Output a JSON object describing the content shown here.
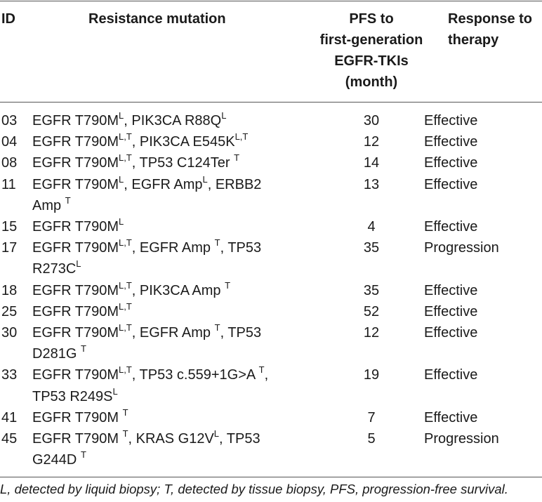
{
  "table": {
    "headers": {
      "id": "ID",
      "mutation": "Resistance mutation",
      "pfs": [
        "PFS to",
        "first-generation",
        "EGFR-TKIs",
        "(month)"
      ],
      "response": [
        "Response to",
        "therapy"
      ]
    },
    "rows": [
      {
        "id": "03",
        "mutation": [
          [
            [
              "EGFR T790M",
              "L"
            ],
            [
              ", PIK3CA R88Q",
              "L"
            ]
          ]
        ],
        "pfs": "30",
        "response": "Effective"
      },
      {
        "id": "04",
        "mutation": [
          [
            [
              "EGFR T790M",
              "L,T"
            ],
            [
              ", PIK3CA E545K",
              "L,T"
            ]
          ]
        ],
        "pfs": "12",
        "response": "Effective"
      },
      {
        "id": "08",
        "mutation": [
          [
            [
              "EGFR T790M",
              "L,T"
            ],
            [
              ", TP53 C124Ter ",
              "T"
            ]
          ]
        ],
        "pfs": "14",
        "response": "Effective"
      },
      {
        "id": "11",
        "mutation": [
          [
            [
              "EGFR T790M",
              "L"
            ],
            [
              ", EGFR Amp",
              "L"
            ],
            [
              ", ERBB2",
              ""
            ]
          ],
          [
            [
              "Amp ",
              "T"
            ]
          ]
        ],
        "pfs": "13",
        "response": "Effective"
      },
      {
        "id": "15",
        "mutation": [
          [
            [
              "EGFR T790M",
              "L"
            ]
          ]
        ],
        "pfs": "4",
        "response": "Effective"
      },
      {
        "id": "17",
        "mutation": [
          [
            [
              "EGFR T790M",
              "L,T"
            ],
            [
              ", EGFR Amp ",
              "T"
            ],
            [
              ", TP53",
              ""
            ]
          ],
          [
            [
              "R273C",
              "L"
            ]
          ]
        ],
        "pfs": "35",
        "response": "Progression"
      },
      {
        "id": "18",
        "mutation": [
          [
            [
              "EGFR T790M",
              "L,T"
            ],
            [
              ", PIK3CA Amp ",
              "T"
            ]
          ]
        ],
        "pfs": "35",
        "response": "Effective"
      },
      {
        "id": "25",
        "mutation": [
          [
            [
              "EGFR T790M",
              "L,T"
            ]
          ]
        ],
        "pfs": "52",
        "response": "Effective"
      },
      {
        "id": "30",
        "mutation": [
          [
            [
              "EGFR T790M",
              "L,T"
            ],
            [
              ", EGFR Amp ",
              "T"
            ],
            [
              ", TP53",
              ""
            ]
          ],
          [
            [
              "D281G ",
              "T"
            ]
          ]
        ],
        "pfs": "12",
        "response": "Effective"
      },
      {
        "id": "33",
        "mutation": [
          [
            [
              "EGFR T790M",
              "L,T"
            ],
            [
              ", TP53 c.559+1G>A ",
              "T"
            ],
            [
              ",",
              ""
            ]
          ],
          [
            [
              "TP53 R249S",
              "L"
            ]
          ]
        ],
        "pfs": "19",
        "response": "Effective"
      },
      {
        "id": "41",
        "mutation": [
          [
            [
              "EGFR T790M ",
              "T"
            ]
          ]
        ],
        "pfs": "7",
        "response": "Effective"
      },
      {
        "id": "45",
        "mutation": [
          [
            [
              "EGFR T790M ",
              "T"
            ],
            [
              ", KRAS G12V",
              "L"
            ],
            [
              ", TP53",
              ""
            ]
          ],
          [
            [
              "G244D ",
              "T"
            ]
          ]
        ],
        "pfs": "5",
        "response": "Progression"
      }
    ]
  },
  "footnote": "L, detected by liquid biopsy; T, detected by tissue biopsy, PFS, progression-free survival."
}
